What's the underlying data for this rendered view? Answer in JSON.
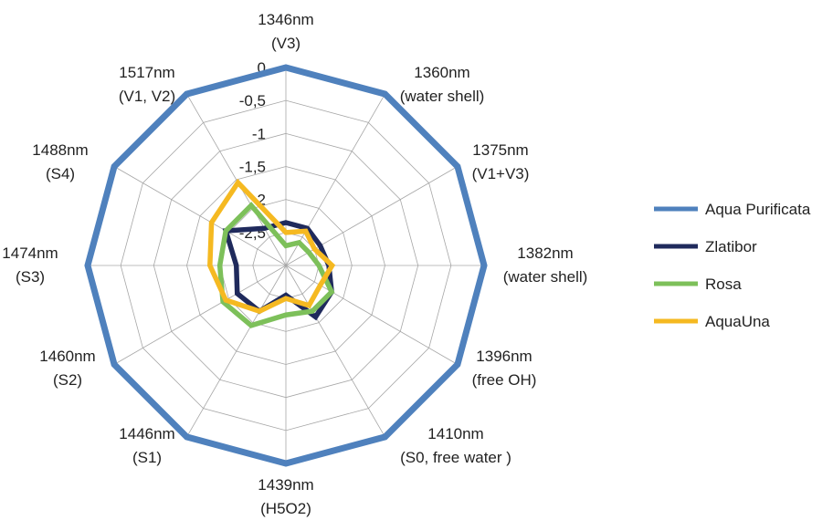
{
  "chart_data": {
    "type": "radar",
    "categories": [
      [
        "1346nm",
        "(V3)"
      ],
      [
        "1360nm",
        "(water shell)"
      ],
      [
        "1375nm",
        "(V1+V3)"
      ],
      [
        "1382nm",
        "(water shell)"
      ],
      [
        "1396nm",
        "(free OH)"
      ],
      [
        "1410nm",
        "(S0, free water )"
      ],
      [
        "1439nm",
        "(H5O2)"
      ],
      [
        "1446nm",
        "(S1)"
      ],
      [
        "1460nm",
        "(S2)"
      ],
      [
        "1474nm",
        "(S3)"
      ],
      [
        "1488nm",
        "(S4)"
      ],
      [
        "1517nm",
        "(V1, V2)"
      ]
    ],
    "axis": {
      "min": -3,
      "max": 0,
      "ticks": [
        0,
        -0.5,
        -1,
        -1.5,
        -2,
        -2.5
      ],
      "tick_labels": [
        "0",
        "-0,5",
        "-1",
        "-1,5",
        "-2",
        "-2,5"
      ]
    },
    "legend_position": "right",
    "series": [
      {
        "name": "Aqua Purificata",
        "color": "#4f81bd",
        "values": [
          0,
          0,
          0,
          0,
          0,
          0,
          0,
          0,
          0,
          0,
          0,
          0
        ]
      },
      {
        "name": "Zlatibor",
        "color": "#1f2a5c",
        "values": [
          -2.35,
          -2.35,
          -2.4,
          -2.35,
          -2.2,
          -2.1,
          -2.55,
          -2.2,
          -2.15,
          -2.25,
          -1.95,
          -2.35
        ]
      },
      {
        "name": "Rosa",
        "color": "#7dc05a",
        "values": [
          -2.7,
          -2.6,
          -2.6,
          -2.5,
          -2.2,
          -2.2,
          -2.25,
          -1.95,
          -1.9,
          -2.0,
          -1.95,
          -1.95
        ]
      },
      {
        "name": "AquaUna",
        "color": "#f5b921",
        "values": [
          -2.5,
          -2.4,
          -2.5,
          -2.3,
          -2.4,
          -2.3,
          -2.5,
          -2.2,
          -1.95,
          -1.85,
          -1.7,
          -1.55
        ]
      }
    ]
  }
}
